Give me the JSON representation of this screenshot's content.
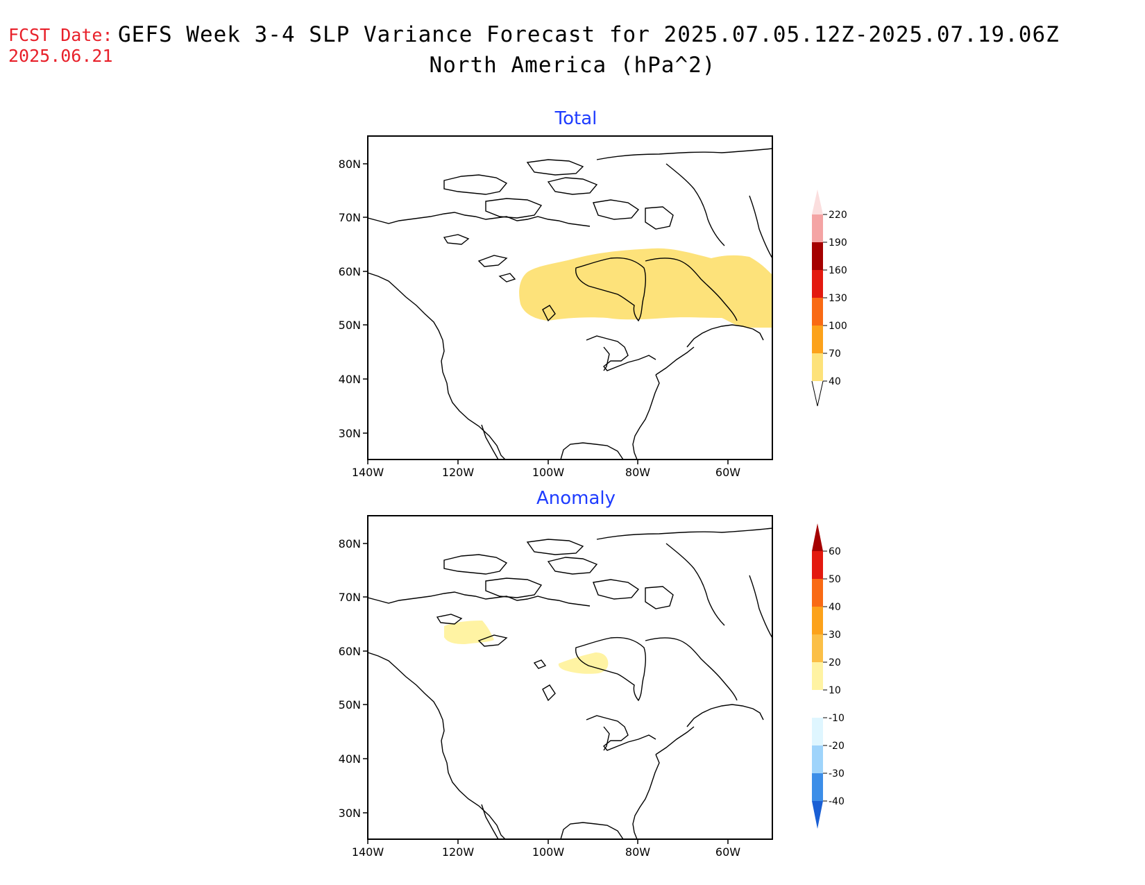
{
  "header": {
    "fcst_label": "FCST Date:",
    "fcst_date": "2025.06.21",
    "title": "GEFS Week 3-4 SLP Variance Forecast for 2025.07.05.12Z-2025.07.19.06Z",
    "subtitle": "North America (hPa^2)"
  },
  "chart_data": [
    {
      "type": "heatmap",
      "title": "Total",
      "x_ticks": [
        "140W",
        "120W",
        "100W",
        "80W",
        "60W"
      ],
      "y_ticks": [
        "30N",
        "40N",
        "50N",
        "60N",
        "70N",
        "80N"
      ],
      "lon_range": [
        -140,
        -50
      ],
      "lat_range": [
        25,
        85
      ],
      "colorbar": {
        "levels": [
          "40",
          "70",
          "100",
          "130",
          "160",
          "190",
          "220"
        ],
        "colors": [
          "#fde27a",
          "#fca21b",
          "#f96a14",
          "#e3190f",
          "#a50000",
          "#f4a4a4",
          "#fbdede"
        ]
      },
      "shaded_regions": [
        {
          "level": "40-70",
          "color": "#fde27a",
          "region": "central and eastern Canada, Hudson Bay to Labrador"
        }
      ]
    },
    {
      "type": "heatmap",
      "title": "Anomaly",
      "x_ticks": [
        "140W",
        "120W",
        "100W",
        "80W",
        "60W"
      ],
      "y_ticks": [
        "30N",
        "40N",
        "50N",
        "60N",
        "70N",
        "80N"
      ],
      "lon_range": [
        -140,
        -50
      ],
      "lat_range": [
        25,
        85
      ],
      "colorbar": {
        "levels": [
          "60",
          "50",
          "40",
          "30",
          "20",
          "10",
          "-10",
          "-20",
          "-30",
          "-40"
        ],
        "colors": [
          "#a50000",
          "#e3190f",
          "#f96a14",
          "#fca21b",
          "#fbbf47",
          "#fff3a3",
          "#ffffff",
          "#dff6ff",
          "#9fd4fb",
          "#3c8ee8",
          "#1a5fd4"
        ]
      },
      "shaded_regions": [
        {
          "level": "10-20",
          "color": "#fff3a3",
          "region": "Yukon / northern British Columbia"
        },
        {
          "level": "10-20",
          "color": "#fff3a3",
          "region": "western Hudson Bay coast"
        }
      ]
    }
  ]
}
